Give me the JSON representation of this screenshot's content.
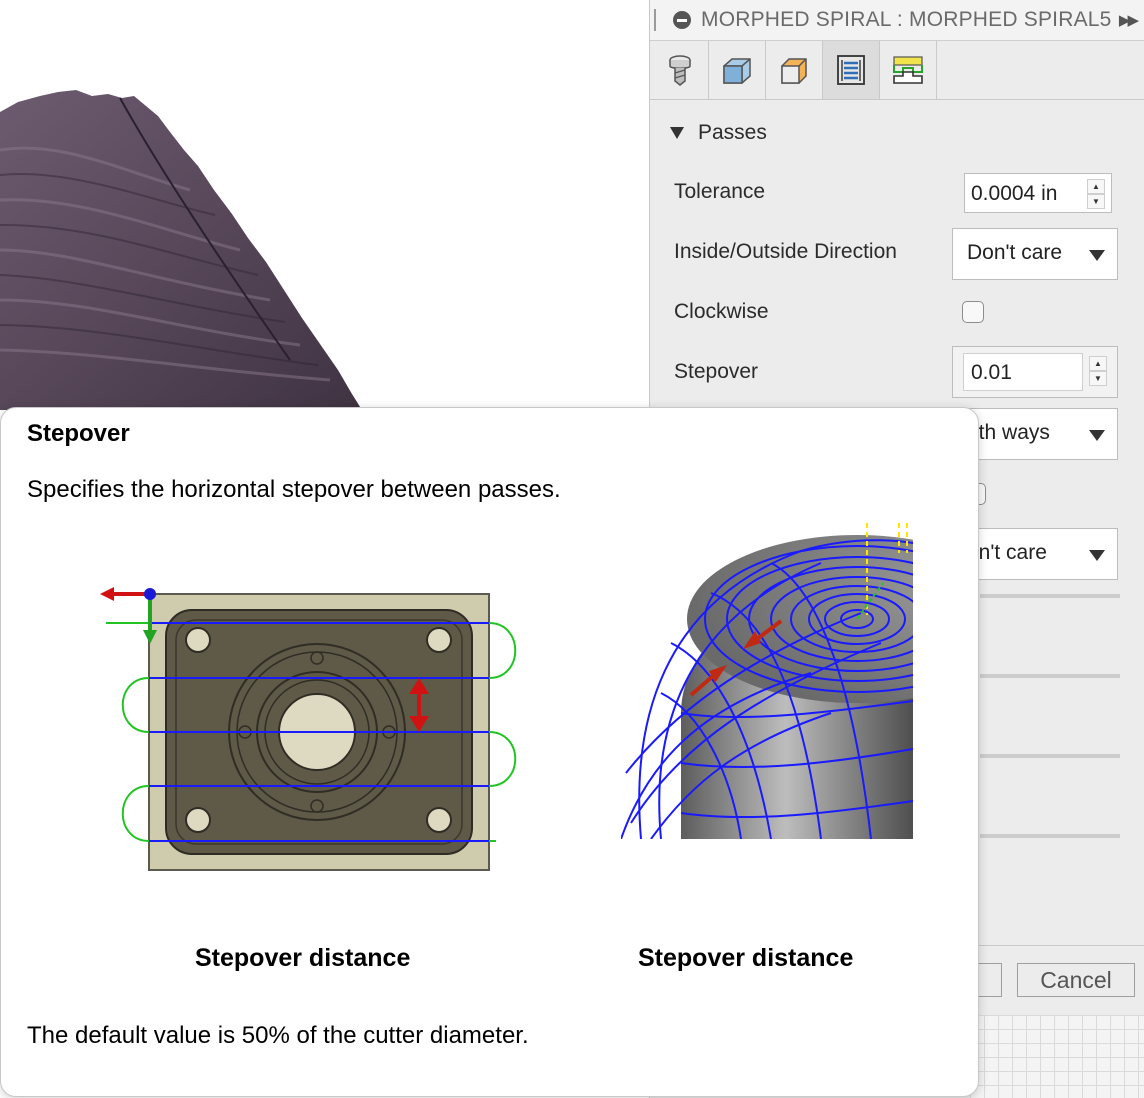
{
  "panel": {
    "title": "MORPHED SPIRAL : MORPHED SPIRAL5",
    "tabs": [
      {
        "icon": "tool-icon",
        "active": false
      },
      {
        "icon": "geometry-icon",
        "active": false
      },
      {
        "icon": "heights-icon",
        "active": false
      },
      {
        "icon": "passes-icon",
        "active": true
      },
      {
        "icon": "linking-icon",
        "active": false
      }
    ],
    "section_title": "Passes",
    "fields": {
      "tolerance": {
        "label": "Tolerance",
        "value": "0.0004 in"
      },
      "inside_outside": {
        "label": "Inside/Outside Direction",
        "value": "Don't care"
      },
      "clockwise": {
        "label": "Clockwise",
        "checked": false
      },
      "stepover": {
        "label": "Stepover",
        "value": "0.01"
      },
      "direction_partial": {
        "value": "oth ways"
      },
      "partial_select_2": {
        "value": "on't care"
      }
    },
    "cancel_label": "Cancel"
  },
  "tooltip": {
    "title": "Stepover",
    "description": "Specifies the horizontal stepover between passes.",
    "caption_left": "Stepover distance",
    "caption_right": "Stepover distance",
    "note": "The default value is 50% of the cutter diameter."
  },
  "colors": {
    "toolpath_blue": "#1a1aff",
    "link_green": "#22c422",
    "arrow_red": "#d01212",
    "mesh_purple": "#5a4a5e",
    "part_olive": "#5e5a47",
    "stock_tan": "#cfcbad"
  }
}
